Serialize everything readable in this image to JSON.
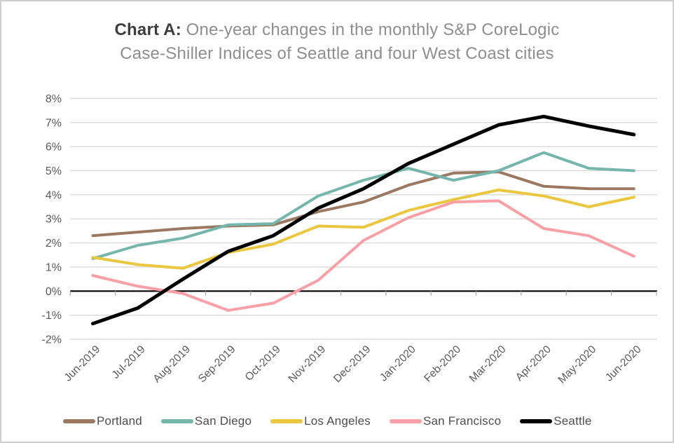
{
  "title": {
    "prefix": "Chart A:",
    "line1_rest": "One-year changes in the monthly S&P CoreLogic",
    "line2": "Case-Shiller Indices of Seattle and four West Coast cities"
  },
  "colors": {
    "gridline": "#d9d9d9",
    "zero_axis": "#000000",
    "tick": "#ababab",
    "axis_label": "#595959",
    "title_accent": "#3d3d3d",
    "title_gray": "#8e8e8e",
    "border": "#cfcfcf"
  },
  "chart_data": {
    "type": "line",
    "categories": [
      "Jun-2019",
      "Jul-2019",
      "Aug-2019",
      "Sep-2019",
      "Oct-2019",
      "Nov-2019",
      "Dec-2019",
      "Jan-2020",
      "Feb-2020",
      "Mar-2020",
      "Apr-2020",
      "May-2020",
      "Jun-2020"
    ],
    "series": [
      {
        "name": "Portland",
        "color": "#9a7862",
        "width": 4,
        "values": [
          2.3,
          2.45,
          2.6,
          2.7,
          2.75,
          3.3,
          3.7,
          4.4,
          4.9,
          4.95,
          4.35,
          4.25,
          4.25
        ]
      },
      {
        "name": "San Diego",
        "color": "#74b5ac",
        "width": 4,
        "values": [
          1.35,
          1.9,
          2.2,
          2.75,
          2.8,
          3.95,
          4.6,
          5.1,
          4.6,
          5.0,
          5.75,
          5.1,
          5.0
        ]
      },
      {
        "name": "Los Angeles",
        "color": "#ebc63f",
        "width": 4,
        "values": [
          1.4,
          1.1,
          0.95,
          1.6,
          1.95,
          2.7,
          2.65,
          3.35,
          3.8,
          4.2,
          3.95,
          3.5,
          3.9
        ]
      },
      {
        "name": "San Francisco",
        "color": "#f99fa6",
        "width": 4,
        "values": [
          0.65,
          0.2,
          -0.1,
          -0.8,
          -0.5,
          0.45,
          2.1,
          3.05,
          3.7,
          3.75,
          2.6,
          2.3,
          1.45
        ]
      },
      {
        "name": "Seattle",
        "color": "#000000",
        "width": 5,
        "values": [
          -1.35,
          -0.7,
          0.5,
          1.65,
          2.3,
          3.45,
          4.25,
          5.3,
          6.1,
          6.9,
          7.25,
          6.85,
          6.5
        ]
      }
    ],
    "ylim": [
      -2,
      8
    ],
    "ytick_step": 1,
    "ytick_suffix": "%",
    "grid": true,
    "zero_axis": true,
    "legend_position": "bottom",
    "x_label_rotation": -45
  }
}
